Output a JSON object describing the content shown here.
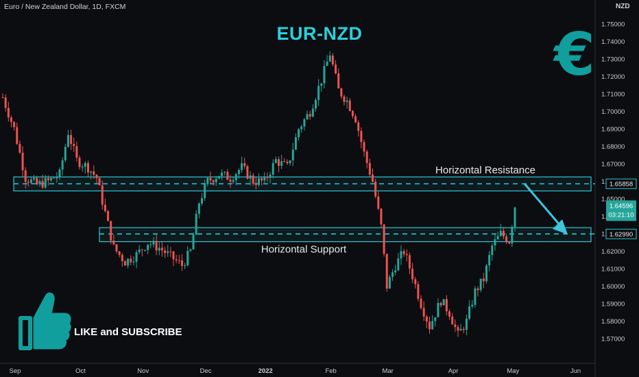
{
  "symbol_line": "Euro / New Zealand Dollar, 1D, FXCM",
  "currency": "NZD",
  "title": "EUR-NZD",
  "logo": "€",
  "cta": "LIKE and SUBSCRIBE",
  "icons": {
    "thumb": "thumbs-up-icon",
    "euro": "euro-icon",
    "arrow": "arrow-down-right-icon"
  },
  "colors": {
    "up": "#26a69a",
    "down": "#ef5350",
    "zone": "#2fc6d6",
    "title": "#28d1de",
    "arrow": "#3fc5dd"
  },
  "chart_data": {
    "type": "candlestick",
    "ylim": [
      1.565,
      1.755
    ],
    "y_ticks": [
      "1.57000",
      "1.58000",
      "1.59000",
      "1.60000",
      "1.61000",
      "1.62000",
      "1.63000",
      "1.64000",
      "1.65000",
      "1.66000",
      "1.67000",
      "1.68000",
      "1.69000",
      "1.70000",
      "1.71000",
      "1.72000",
      "1.73000",
      "1.74000",
      "1.75000"
    ],
    "x_ticks": [
      {
        "label": "Sep",
        "bar": 0
      },
      {
        "label": "Oct",
        "bar": 23
      },
      {
        "label": "Nov",
        "bar": 45
      },
      {
        "label": "Dec",
        "bar": 67
      },
      {
        "label": "2022",
        "bar": 88
      },
      {
        "label": "Feb",
        "bar": 111
      },
      {
        "label": "Mar",
        "bar": 131
      },
      {
        "label": "Apr",
        "bar": 154
      },
      {
        "label": "May",
        "bar": 175
      },
      {
        "label": "Jun",
        "bar": 197
      }
    ],
    "bar_count": 200,
    "waypoints": [
      [
        0,
        1.708
      ],
      [
        4,
        1.69
      ],
      [
        8,
        1.662
      ],
      [
        12,
        1.658
      ],
      [
        16,
        1.66
      ],
      [
        20,
        1.664
      ],
      [
        23,
        1.688
      ],
      [
        26,
        1.672
      ],
      [
        30,
        1.668
      ],
      [
        33,
        1.662
      ],
      [
        36,
        1.642
      ],
      [
        39,
        1.622
      ],
      [
        43,
        1.614
      ],
      [
        47,
        1.618
      ],
      [
        51,
        1.625
      ],
      [
        55,
        1.622
      ],
      [
        59,
        1.617
      ],
      [
        63,
        1.612
      ],
      [
        66,
        1.62
      ],
      [
        69,
        1.648
      ],
      [
        72,
        1.66
      ],
      [
        76,
        1.664
      ],
      [
        80,
        1.662
      ],
      [
        84,
        1.668
      ],
      [
        88,
        1.66
      ],
      [
        92,
        1.66
      ],
      [
        96,
        1.672
      ],
      [
        100,
        1.668
      ],
      [
        104,
        1.69
      ],
      [
        108,
        1.7
      ],
      [
        112,
        1.718
      ],
      [
        115,
        1.733
      ],
      [
        118,
        1.712
      ],
      [
        121,
        1.706
      ],
      [
        124,
        1.696
      ],
      [
        127,
        1.676
      ],
      [
        130,
        1.66
      ],
      [
        133,
        1.634
      ],
      [
        135,
        1.6
      ],
      [
        138,
        1.612
      ],
      [
        141,
        1.62
      ],
      [
        144,
        1.606
      ],
      [
        147,
        1.59
      ],
      [
        150,
        1.577
      ],
      [
        154,
        1.592
      ],
      [
        157,
        1.585
      ],
      [
        160,
        1.572
      ],
      [
        163,
        1.58
      ],
      [
        166,
        1.597
      ],
      [
        169,
        1.604
      ],
      [
        172,
        1.623
      ],
      [
        175,
        1.63
      ],
      [
        178,
        1.626
      ],
      [
        180,
        1.646
      ]
    ],
    "annotations": [
      {
        "label": "Horizontal Resistance",
        "level": 1.65858,
        "zone": [
          1.6545,
          1.6625
        ]
      },
      {
        "label": "Horizontal Support",
        "level": 1.6299,
        "zone": [
          1.6255,
          1.6335
        ]
      }
    ],
    "price_badges": [
      {
        "label": "1.65858",
        "value": 1.65858,
        "style": "outline"
      },
      {
        "label": "1.64596",
        "value": 1.64596,
        "style": "filled"
      },
      {
        "label": "1.62990",
        "value": 1.6299,
        "style": "outline"
      }
    ],
    "current_price": {
      "value": "1.64596",
      "countdown": "03:21:10"
    }
  }
}
